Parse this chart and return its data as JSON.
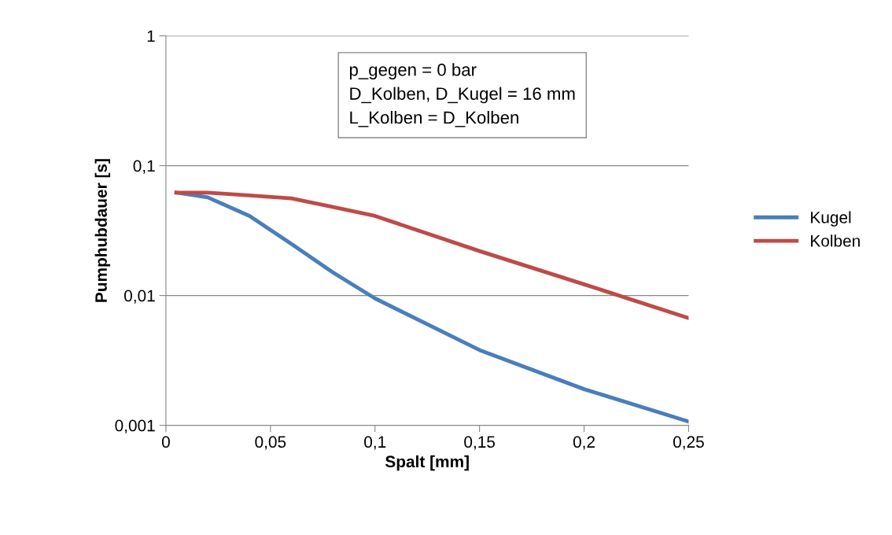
{
  "chart_data": {
    "type": "line",
    "xlabel": "Spalt [mm]",
    "ylabel": "Pumphubdauer [s]",
    "x": [
      0.005,
      0.02,
      0.04,
      0.06,
      0.08,
      0.1,
      0.15,
      0.2,
      0.25
    ],
    "series": [
      {
        "name": "Kugel",
        "color": "#4a7ebb",
        "values": [
          0.062,
          0.057,
          0.041,
          0.025,
          0.015,
          0.0095,
          0.0038,
          0.0019,
          0.00107
        ]
      },
      {
        "name": "Kolben",
        "color": "#be4b48",
        "values": [
          0.062,
          0.062,
          0.059,
          0.056,
          0.048,
          0.041,
          0.022,
          0.0122,
          0.0067
        ]
      }
    ],
    "log": "y",
    "xlim": [
      0,
      0.25
    ],
    "ylim": [
      0.001,
      1
    ],
    "xticks": [
      0,
      {
        "value": 0.05,
        "label": "0,05"
      },
      {
        "value": 0.1,
        "label": "0,1"
      },
      {
        "value": 0.15,
        "label": "0,15"
      },
      {
        "value": 0.2,
        "label": "0,2"
      },
      {
        "value": 0.25,
        "label": "0,25"
      }
    ],
    "yticks": [
      {
        "value": 0.001,
        "label": "0,001"
      },
      {
        "value": 0.01,
        "label": "0,01"
      },
      {
        "value": 0.1,
        "label": "0,1"
      },
      1
    ],
    "grid": "y",
    "legend": "right",
    "marker": "none",
    "line_style": "solid",
    "annotations": [
      "p_gegen = 0 bar\nD_Kolben, D_Kugel = 16 mm\nL_Kolben = D_Kolben"
    ]
  }
}
